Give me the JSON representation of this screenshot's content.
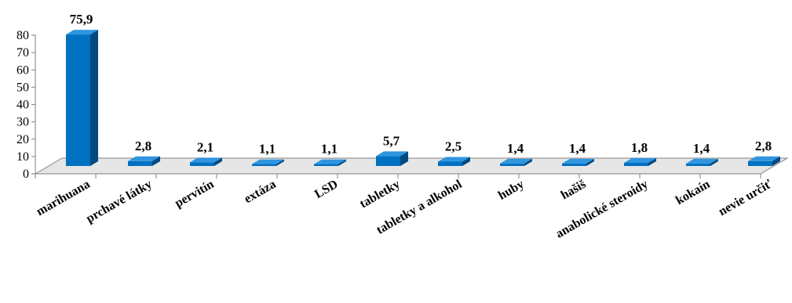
{
  "chart_data": {
    "type": "bar",
    "style": "3d-column",
    "categories": [
      "marihuana",
      "prchavé látky",
      "pervitín",
      "extáza",
      "LSD",
      "tabletky",
      "tabletky a alkohol",
      "huby",
      "hašiš",
      "anabolické steroidy",
      "kokaín",
      "nevie určiť"
    ],
    "values": [
      75.9,
      2.8,
      2.1,
      1.1,
      1.1,
      5.7,
      2.5,
      1.4,
      1.4,
      1.8,
      1.4,
      2.8
    ],
    "value_labels": [
      "75,9",
      "2,8",
      "2,1",
      "1,1",
      "1,1",
      "5,7",
      "2,5",
      "1,4",
      "1,4",
      "1,8",
      "1,4",
      "2,8"
    ],
    "y_ticks": [
      "0",
      "10",
      "20",
      "30",
      "40",
      "50",
      "60",
      "70",
      "80"
    ],
    "ylim": [
      0,
      80
    ],
    "grid": false,
    "legend": "none",
    "colors": {
      "front": "#0070c0",
      "side": "#004a80",
      "top": "#2f95e0",
      "floor": "#e6e6e6",
      "axis": "#808080"
    }
  }
}
